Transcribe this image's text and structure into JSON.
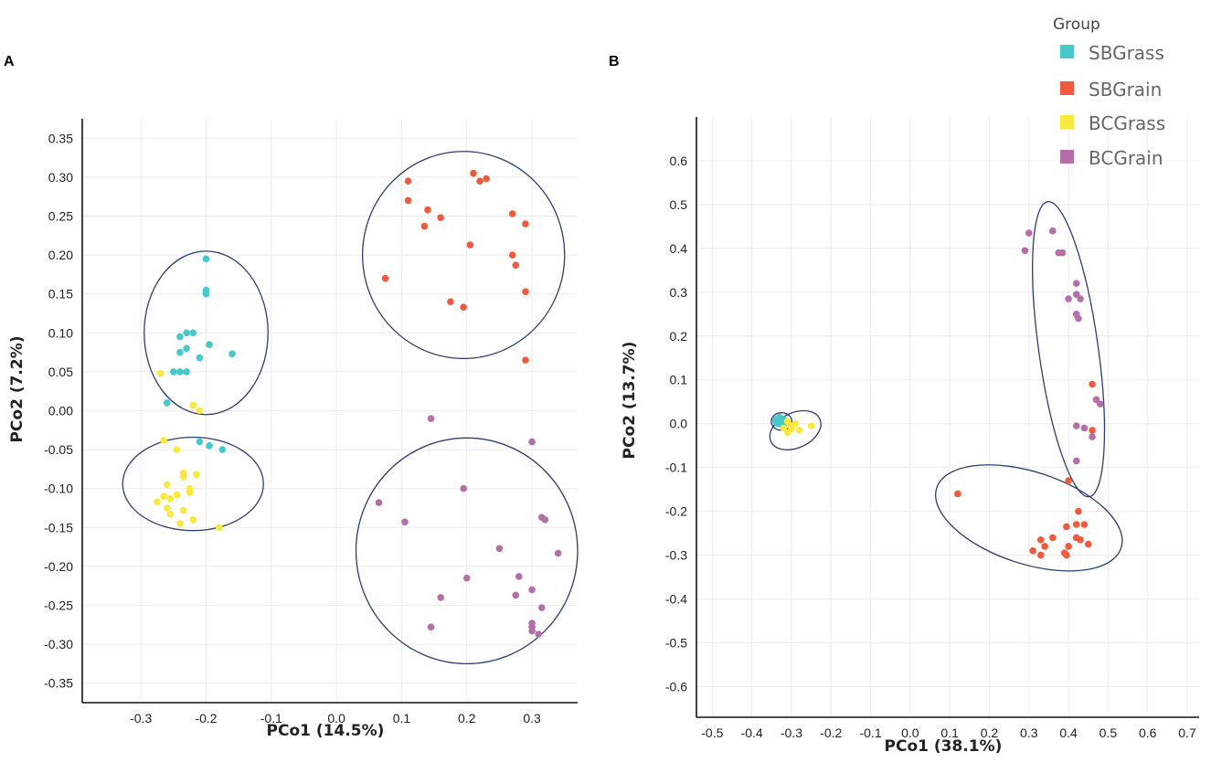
{
  "legend": {
    "title": "Group",
    "entries": [
      {
        "name": "SBGrass",
        "color": "#48c9c9"
      },
      {
        "name": "SBGrain",
        "color": "#f05a3c"
      },
      {
        "name": "BCGrass",
        "color": "#f7e93e"
      },
      {
        "name": "BCGrain",
        "color": "#b56fa8"
      }
    ]
  },
  "ellipse_color": "#2c3e6e",
  "chart_data": [
    {
      "type": "scatter",
      "panel": "A",
      "xlabel": "PCo1 (14.5%)",
      "ylabel": "PCo2 (7.2%)",
      "xlim": [
        -0.39,
        0.37
      ],
      "ylim": [
        -0.375,
        0.375
      ],
      "xticks": [
        -0.3,
        -0.2,
        -0.1,
        0.0,
        0.1,
        0.2,
        0.3
      ],
      "xtick_labels": [
        "-0.3",
        "-0.2",
        "-0.1",
        "0.0",
        "0.1",
        "0.2",
        "0.3"
      ],
      "yticks": [
        -0.35,
        -0.3,
        -0.25,
        -0.2,
        -0.15,
        -0.1,
        -0.05,
        0.0,
        0.05,
        0.1,
        0.15,
        0.2,
        0.25,
        0.3,
        0.35
      ],
      "ytick_labels": [
        "-0.35",
        "-0.30",
        "-0.25",
        "-0.20",
        "-0.15",
        "-0.10",
        "-0.05",
        "0.00",
        "0.05",
        "0.10",
        "0.15",
        "0.20",
        "0.25",
        "0.30",
        "0.35"
      ],
      "series": [
        {
          "name": "SBGrass",
          "x": [
            -0.2,
            -0.2,
            -0.2,
            -0.23,
            -0.22,
            -0.24,
            -0.23,
            -0.24,
            -0.195,
            -0.16,
            -0.21,
            -0.24,
            -0.25,
            -0.23,
            -0.26,
            -0.21,
            -0.195,
            -0.175
          ],
          "y": [
            0.195,
            0.155,
            0.15,
            0.1,
            0.1,
            0.095,
            0.08,
            0.075,
            0.085,
            0.073,
            0.068,
            0.05,
            0.05,
            0.05,
            0.01,
            -0.04,
            -0.045,
            -0.05
          ]
        },
        {
          "name": "SBGrain",
          "x": [
            0.21,
            0.22,
            0.23,
            0.11,
            0.14,
            0.16,
            0.11,
            0.135,
            0.27,
            0.29,
            0.205,
            0.27,
            0.275,
            0.075,
            0.29,
            0.175,
            0.195,
            0.29
          ],
          "y": [
            0.305,
            0.295,
            0.298,
            0.295,
            0.258,
            0.248,
            0.27,
            0.237,
            0.253,
            0.24,
            0.213,
            0.2,
            0.187,
            0.17,
            0.153,
            0.14,
            0.133,
            0.065
          ]
        },
        {
          "name": "BCGrass",
          "x": [
            -0.27,
            -0.22,
            -0.21,
            -0.265,
            -0.245,
            -0.235,
            -0.235,
            -0.215,
            -0.225,
            -0.26,
            -0.245,
            -0.225,
            -0.265,
            -0.275,
            -0.255,
            -0.26,
            -0.235,
            -0.22,
            -0.255,
            -0.24,
            -0.18
          ],
          "y": [
            0.048,
            0.007,
            0.0,
            -0.038,
            -0.05,
            -0.08,
            -0.085,
            -0.082,
            -0.1,
            -0.095,
            -0.108,
            -0.105,
            -0.11,
            -0.117,
            -0.113,
            -0.125,
            -0.128,
            -0.14,
            -0.133,
            -0.145,
            -0.15
          ]
        },
        {
          "name": "BCGrain",
          "x": [
            0.145,
            0.3,
            0.195,
            0.065,
            0.105,
            0.315,
            0.32,
            0.34,
            0.25,
            0.28,
            0.2,
            0.275,
            0.3,
            0.16,
            0.3,
            0.3,
            0.315,
            0.145,
            0.3,
            0.31
          ],
          "y": [
            -0.01,
            -0.04,
            -0.1,
            -0.118,
            -0.143,
            -0.137,
            -0.14,
            -0.183,
            -0.177,
            -0.213,
            -0.215,
            -0.237,
            -0.23,
            -0.24,
            -0.273,
            -0.278,
            -0.253,
            -0.278,
            -0.283,
            -0.287
          ]
        }
      ],
      "ellipses": [
        {
          "cx": -0.2,
          "cy": 0.1,
          "rx": 0.095,
          "ry": 0.105,
          "angle": 0
        },
        {
          "cx": -0.22,
          "cy": -0.094,
          "rx": 0.108,
          "ry": 0.06,
          "angle": 0
        },
        {
          "cx": 0.195,
          "cy": 0.2,
          "rx": 0.155,
          "ry": 0.133,
          "angle": 0
        },
        {
          "cx": 0.2,
          "cy": -0.18,
          "rx": 0.17,
          "ry": 0.145,
          "angle": 0
        }
      ]
    },
    {
      "type": "scatter",
      "panel": "B",
      "xlabel": "PCo1 (38.1%)",
      "ylabel": "PCo2 (13.7%)",
      "xlim": [
        -0.54,
        0.73
      ],
      "ylim": [
        -0.67,
        0.7
      ],
      "xticks": [
        -0.5,
        -0.4,
        -0.3,
        -0.2,
        -0.1,
        0.0,
        0.1,
        0.2,
        0.3,
        0.4,
        0.5,
        0.6,
        0.7
      ],
      "xtick_labels": [
        "-0.5",
        "-0.4",
        "-0.3",
        "-0.2",
        "-0.1",
        "0.0",
        "0.1",
        "0.2",
        "0.3",
        "0.4",
        "0.5",
        "0.6",
        "0.7"
      ],
      "yticks": [
        -0.6,
        -0.5,
        -0.4,
        -0.3,
        -0.2,
        -0.1,
        0.0,
        0.1,
        0.2,
        0.3,
        0.4,
        0.5,
        0.6
      ],
      "ytick_labels": [
        "-0.6",
        "-0.5",
        "-0.4",
        "-0.3",
        "-0.2",
        "-0.1",
        "0.0",
        "0.1",
        "0.2",
        "0.3",
        "0.4",
        "0.5",
        "0.6"
      ],
      "series": [
        {
          "name": "SBGrass",
          "x": [
            -0.34,
            -0.33,
            -0.32,
            -0.335,
            -0.325,
            -0.315,
            -0.33,
            -0.32,
            -0.34,
            -0.325
          ],
          "y": [
            0.01,
            0.012,
            0.008,
            0.0,
            -0.003,
            0.003,
            0.015,
            0.01,
            0.005,
            0.007
          ]
        },
        {
          "name": "SBGrain",
          "x": [
            0.46,
            0.46,
            0.12,
            0.4,
            0.425,
            0.42,
            0.44,
            0.395,
            0.42,
            0.36,
            0.43,
            0.45,
            0.33,
            0.34,
            0.4,
            0.31,
            0.39,
            0.33,
            0.395
          ],
          "y": [
            0.09,
            -0.015,
            -0.16,
            -0.13,
            -0.2,
            -0.23,
            -0.23,
            -0.235,
            -0.26,
            -0.26,
            -0.265,
            -0.275,
            -0.265,
            -0.28,
            -0.28,
            -0.29,
            -0.295,
            -0.3,
            -0.3
          ]
        },
        {
          "name": "BCGrass",
          "x": [
            -0.31,
            -0.3,
            -0.32,
            -0.29,
            -0.25,
            -0.28,
            -0.3,
            -0.31
          ],
          "y": [
            0.005,
            -0.005,
            -0.01,
            0.0,
            -0.005,
            -0.015,
            -0.012,
            -0.02
          ]
        },
        {
          "name": "BCGrain",
          "x": [
            0.36,
            0.3,
            0.375,
            0.29,
            0.385,
            0.42,
            0.42,
            0.4,
            0.43,
            0.42,
            0.425,
            0.47,
            0.48,
            0.42,
            0.44,
            0.46,
            0.42
          ],
          "y": [
            0.44,
            0.435,
            0.39,
            0.395,
            0.39,
            0.32,
            0.295,
            0.285,
            0.285,
            0.25,
            0.24,
            0.055,
            0.045,
            -0.005,
            -0.01,
            -0.03,
            -0.085
          ]
        }
      ],
      "ellipses": [
        {
          "cx": -0.325,
          "cy": 0.005,
          "rx": 0.026,
          "ry": 0.02,
          "angle": 0
        },
        {
          "cx": -0.29,
          "cy": -0.015,
          "rx": 0.068,
          "ry": 0.04,
          "angle": -25
        },
        {
          "cx": 0.4,
          "cy": 0.17,
          "rx": 0.075,
          "ry": 0.34,
          "angle": -8
        },
        {
          "cx": 0.3,
          "cy": -0.215,
          "rx": 0.245,
          "ry": 0.105,
          "angle": 18
        }
      ]
    }
  ]
}
